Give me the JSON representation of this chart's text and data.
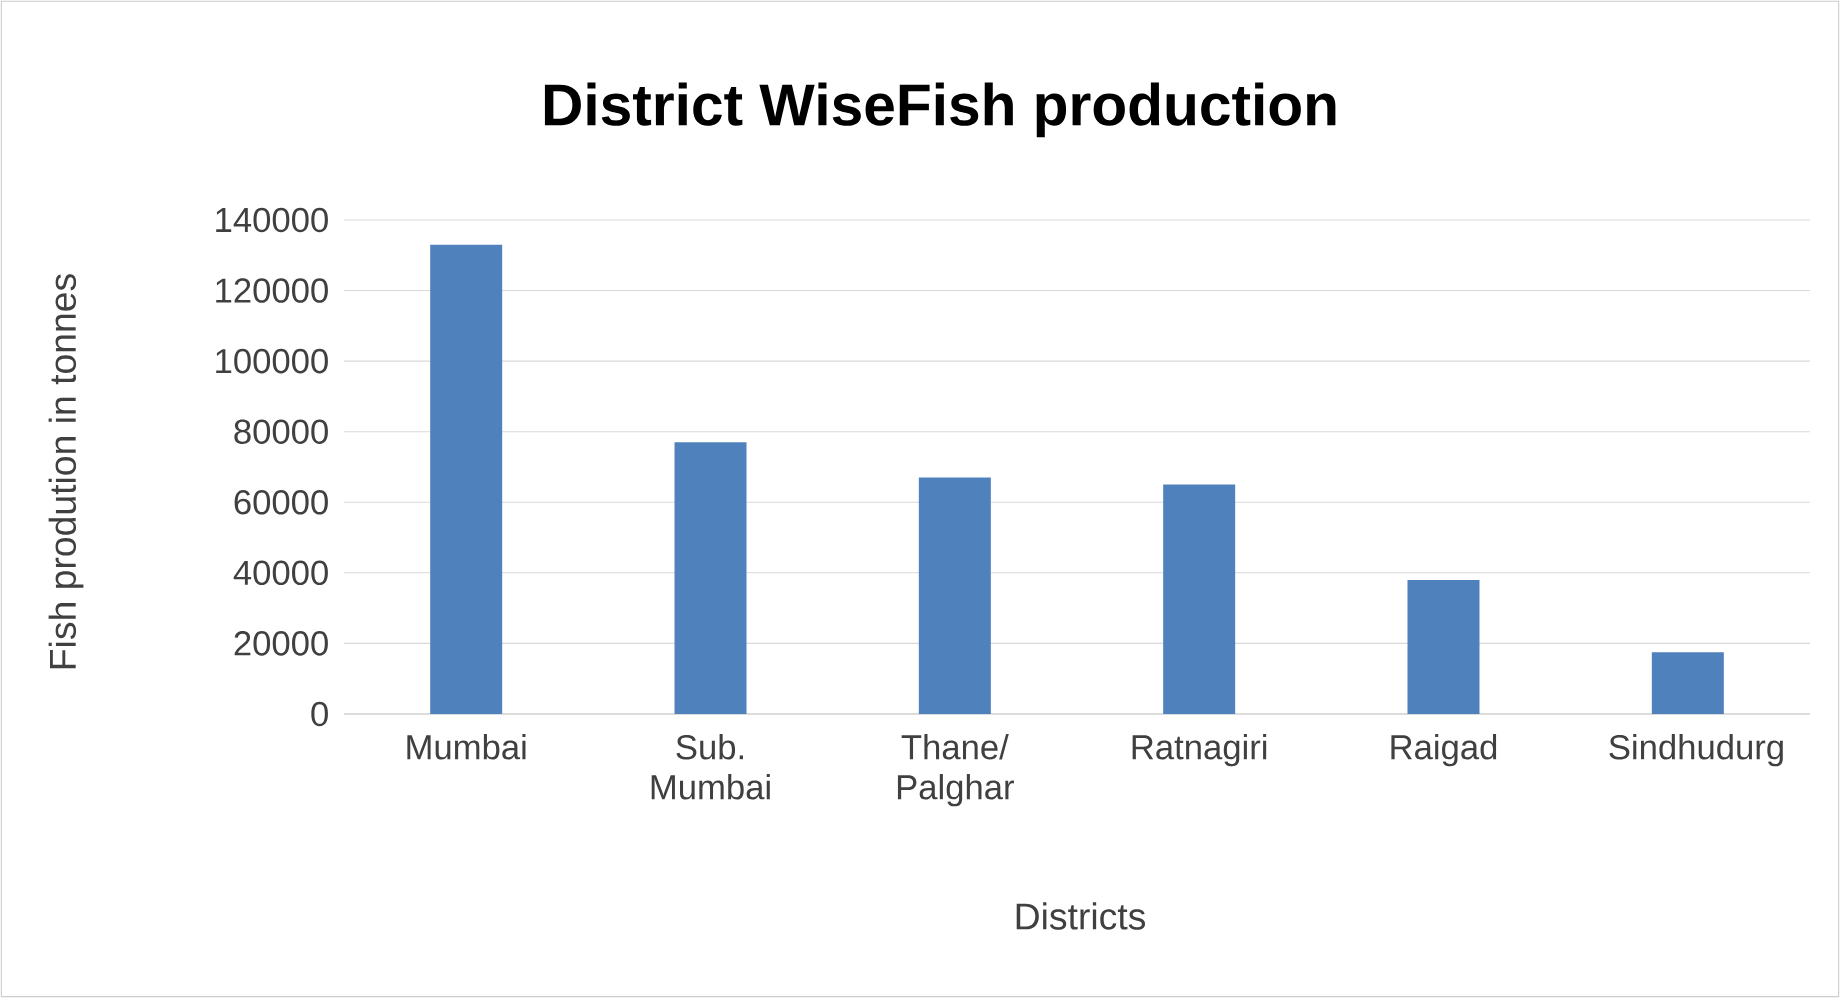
{
  "chart_data": {
    "type": "bar",
    "title": "District WiseFish production",
    "xlabel": "Districts",
    "ylabel": "Fish prodution in tonnes",
    "categories": [
      "Mumbai",
      "Sub. Mumbai",
      "Thane/ Palghar",
      "Ratnagiri",
      "Raigad",
      "Sindhudurg"
    ],
    "values": [
      133000,
      77000,
      67000,
      65000,
      38000,
      17500
    ],
    "color": "#4f81bd",
    "ylim": [
      0,
      140000
    ],
    "yticks": [
      0,
      20000,
      40000,
      60000,
      80000,
      100000,
      120000,
      140000
    ],
    "grid": "y"
  }
}
